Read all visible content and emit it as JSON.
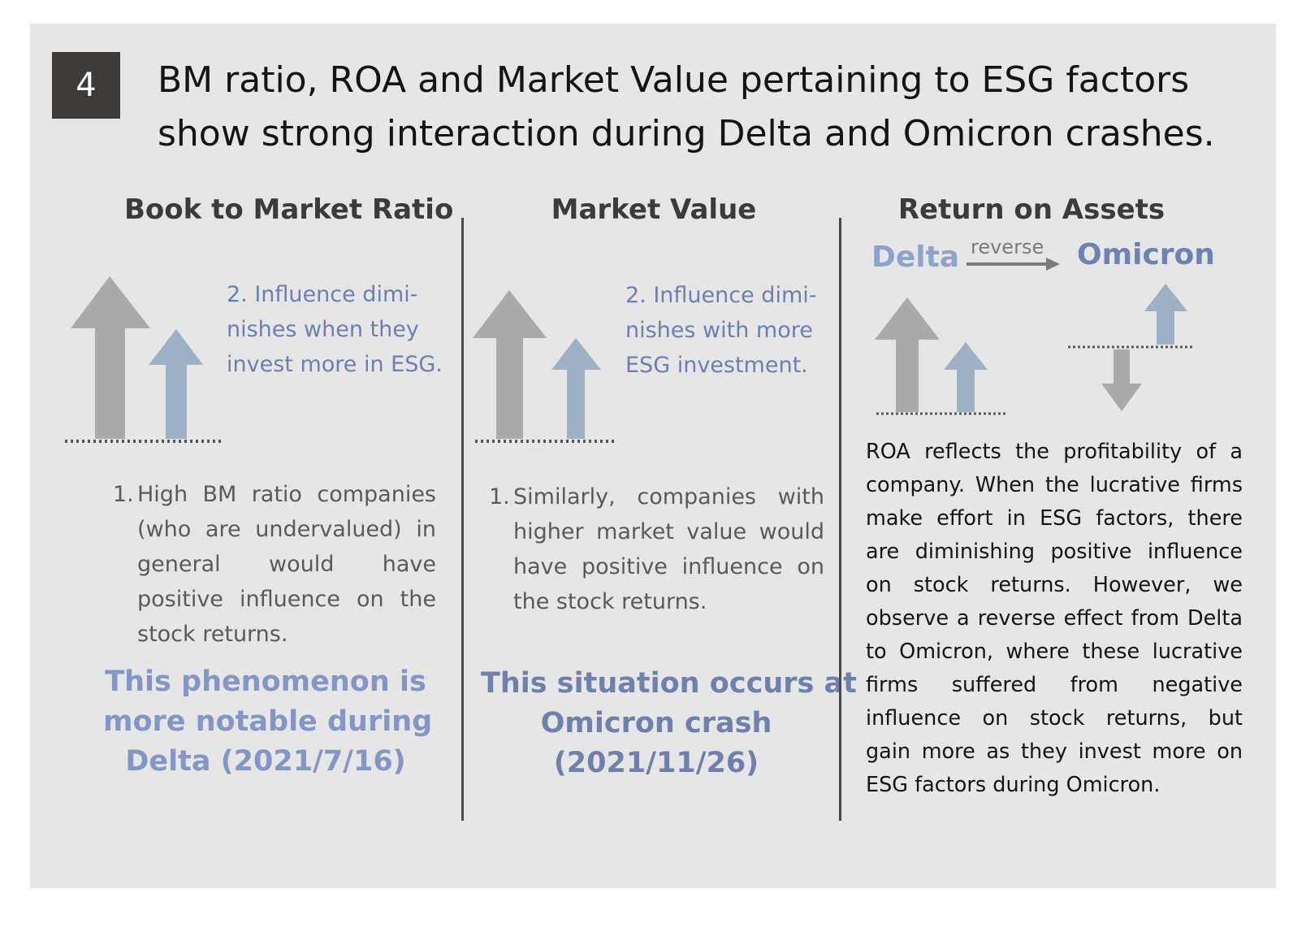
{
  "badge_number": "4",
  "headline": {
    "line1": "BM ratio, ROA and Market Value pertaining to ESG factors",
    "line2": "show strong interaction during Delta and Omicron crashes."
  },
  "columns": [
    {
      "title": "Book to Market  Ratio",
      "note": [
        "2. Influence dimi-",
        "nishes when they",
        "invest more in ESG."
      ],
      "point_number": "1.",
      "point_text": "High BM ratio companies (who are undervalued) in general would have positive influence on the stock returns.",
      "highlight": [
        "This phenomenon is",
        "more notable during",
        "Delta (2021/7/16)"
      ]
    },
    {
      "title": "Market Value",
      "note": [
        "2. Influence dimi-",
        "nishes with more",
        "ESG investment."
      ],
      "point_number": "1.",
      "point_text": "Similarly, companies with higher market value would have positive influence on the stock returns.",
      "highlight": [
        "This situation occurs at",
        "Omicron crash",
        "(2021/11/26)"
      ]
    },
    {
      "title": "Return on Assets",
      "from_label": "Delta",
      "arrow_label": "reverse",
      "to_label": "Omicron",
      "body_lines": [
        "ROA reflects the profitability of a",
        "company. When the lucrative firms",
        "make effort in ESG factors, there",
        "are diminishing positive influence",
        "on stock returns. However, we",
        "observe a reverse effect from Delta",
        "to Omicron, where these lucrative",
        "firms suffered from negative",
        "influence on stock returns, but",
        "gain more as they invest more on",
        "ESG factors during Omicron."
      ]
    }
  ],
  "colors": {
    "panel": "#e6e6e6",
    "gray_arrow": "#aaaaaa",
    "blue_arrow": "#9eb0c3",
    "accent_blue": "#8396c5"
  },
  "icons": [
    "gray-up-arrow-icon",
    "blue-up-arrow-icon",
    "gray-down-arrow-icon",
    "right-arrow-icon"
  ]
}
